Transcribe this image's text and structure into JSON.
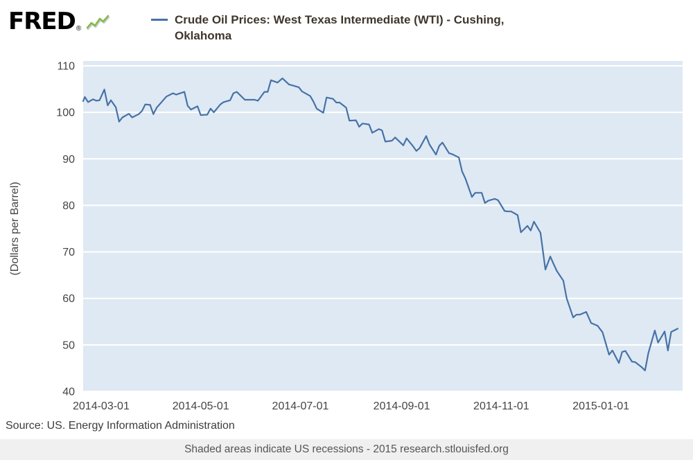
{
  "header": {
    "logo_text": "FRED",
    "registered_mark": "®",
    "legend": {
      "label_line1": "Crude Oil Prices: West Texas Intermediate (WTI) - Cushing,",
      "label_line2": "Oklahoma"
    }
  },
  "footer": {
    "source": "Source: US. Energy Information Administration",
    "recession_note": "Shaded areas indicate US recessions - 2015 research.stlouisfed.org"
  },
  "colors": {
    "line": "#4572a7",
    "plot_bg": "#dfe9f3",
    "grid": "#ffffff",
    "axis_text": "#444444",
    "legend_text": "#3f362c",
    "logo_green": "#86b948"
  },
  "chart_data": {
    "type": "line",
    "title": "Crude Oil Prices: West Texas Intermediate (WTI) - Cushing, Oklahoma",
    "xlabel": "",
    "ylabel": "(Dollars per Barrel)",
    "ylim": [
      40,
      110
    ],
    "y_ticks": [
      40,
      50,
      60,
      70,
      80,
      90,
      100,
      110
    ],
    "x_ticks": [
      "2014-03-01",
      "2014-05-01",
      "2014-07-01",
      "2014-09-01",
      "2014-11-01",
      "2015-01-01"
    ],
    "x_domain": [
      "2014-02-18",
      "2015-02-20"
    ],
    "grid": true,
    "legend_position": "top-left",
    "series": [
      {
        "name": "Crude Oil Prices: West Texas Intermediate (WTI) - Cushing, Oklahoma",
        "points": [
          [
            "2014-02-18",
            102.4
          ],
          [
            "2014-02-19",
            103.3
          ],
          [
            "2014-02-21",
            102.2
          ],
          [
            "2014-02-24",
            102.8
          ],
          [
            "2014-02-26",
            102.5
          ],
          [
            "2014-02-28",
            102.6
          ],
          [
            "2014-03-03",
            104.9
          ],
          [
            "2014-03-05",
            101.5
          ],
          [
            "2014-03-07",
            102.6
          ],
          [
            "2014-03-10",
            101.1
          ],
          [
            "2014-03-12",
            98.0
          ],
          [
            "2014-03-14",
            98.9
          ],
          [
            "2014-03-18",
            99.7
          ],
          [
            "2014-03-20",
            98.9
          ],
          [
            "2014-03-24",
            99.6
          ],
          [
            "2014-03-26",
            100.3
          ],
          [
            "2014-03-28",
            101.7
          ],
          [
            "2014-03-31",
            101.6
          ],
          [
            "2014-04-02",
            99.6
          ],
          [
            "2014-04-04",
            101.0
          ],
          [
            "2014-04-08",
            102.6
          ],
          [
            "2014-04-10",
            103.4
          ],
          [
            "2014-04-14",
            104.1
          ],
          [
            "2014-04-16",
            103.8
          ],
          [
            "2014-04-21",
            104.4
          ],
          [
            "2014-04-23",
            101.4
          ],
          [
            "2014-04-25",
            100.6
          ],
          [
            "2014-04-29",
            101.3
          ],
          [
            "2014-05-01",
            99.4
          ],
          [
            "2014-05-05",
            99.5
          ],
          [
            "2014-05-07",
            100.8
          ],
          [
            "2014-05-09",
            100.0
          ],
          [
            "2014-05-13",
            101.7
          ],
          [
            "2014-05-15",
            102.2
          ],
          [
            "2014-05-19",
            102.6
          ],
          [
            "2014-05-21",
            104.1
          ],
          [
            "2014-05-23",
            104.4
          ],
          [
            "2014-05-28",
            102.7
          ],
          [
            "2014-05-30",
            102.7
          ],
          [
            "2014-06-03",
            102.7
          ],
          [
            "2014-06-05",
            102.5
          ],
          [
            "2014-06-09",
            104.4
          ],
          [
            "2014-06-11",
            104.4
          ],
          [
            "2014-06-13",
            106.9
          ],
          [
            "2014-06-17",
            106.4
          ],
          [
            "2014-06-20",
            107.3
          ],
          [
            "2014-06-24",
            106.0
          ],
          [
            "2014-06-26",
            105.8
          ],
          [
            "2014-06-30",
            105.4
          ],
          [
            "2014-07-02",
            104.5
          ],
          [
            "2014-07-07",
            103.5
          ],
          [
            "2014-07-09",
            102.3
          ],
          [
            "2014-07-11",
            100.8
          ],
          [
            "2014-07-15",
            99.9
          ],
          [
            "2014-07-17",
            103.2
          ],
          [
            "2014-07-21",
            102.9
          ],
          [
            "2014-07-23",
            102.1
          ],
          [
            "2014-07-25",
            102.1
          ],
          [
            "2014-07-29",
            101.0
          ],
          [
            "2014-07-31",
            98.2
          ],
          [
            "2014-08-04",
            98.3
          ],
          [
            "2014-08-06",
            96.9
          ],
          [
            "2014-08-08",
            97.6
          ],
          [
            "2014-08-12",
            97.4
          ],
          [
            "2014-08-14",
            95.6
          ],
          [
            "2014-08-18",
            96.4
          ],
          [
            "2014-08-20",
            96.1
          ],
          [
            "2014-08-22",
            93.7
          ],
          [
            "2014-08-26",
            93.9
          ],
          [
            "2014-08-28",
            94.6
          ],
          [
            "2014-09-02",
            92.9
          ],
          [
            "2014-09-04",
            94.4
          ],
          [
            "2014-09-08",
            92.7
          ],
          [
            "2014-09-10",
            91.7
          ],
          [
            "2014-09-12",
            92.3
          ],
          [
            "2014-09-16",
            94.9
          ],
          [
            "2014-09-18",
            93.1
          ],
          [
            "2014-09-22",
            90.9
          ],
          [
            "2014-09-24",
            92.8
          ],
          [
            "2014-09-26",
            93.5
          ],
          [
            "2014-09-30",
            91.2
          ],
          [
            "2014-10-02",
            91.0
          ],
          [
            "2014-10-06",
            90.3
          ],
          [
            "2014-10-08",
            87.3
          ],
          [
            "2014-10-10",
            85.8
          ],
          [
            "2014-10-14",
            81.8
          ],
          [
            "2014-10-16",
            82.7
          ],
          [
            "2014-10-20",
            82.7
          ],
          [
            "2014-10-22",
            80.5
          ],
          [
            "2014-10-24",
            81.0
          ],
          [
            "2014-10-28",
            81.4
          ],
          [
            "2014-10-30",
            81.1
          ],
          [
            "2014-11-03",
            78.8
          ],
          [
            "2014-11-05",
            78.7
          ],
          [
            "2014-11-07",
            78.7
          ],
          [
            "2014-11-11",
            77.9
          ],
          [
            "2014-11-13",
            74.2
          ],
          [
            "2014-11-17",
            75.6
          ],
          [
            "2014-11-19",
            74.6
          ],
          [
            "2014-11-21",
            76.5
          ],
          [
            "2014-11-25",
            74.1
          ],
          [
            "2014-11-28",
            66.2
          ],
          [
            "2014-12-01",
            69.0
          ],
          [
            "2014-12-03",
            67.4
          ],
          [
            "2014-12-05",
            65.9
          ],
          [
            "2014-12-09",
            63.8
          ],
          [
            "2014-12-11",
            60.0
          ],
          [
            "2014-12-15",
            55.9
          ],
          [
            "2014-12-17",
            56.5
          ],
          [
            "2014-12-19",
            56.5
          ],
          [
            "2014-12-23",
            57.1
          ],
          [
            "2014-12-26",
            54.7
          ],
          [
            "2014-12-30",
            54.1
          ],
          [
            "2015-01-02",
            52.7
          ],
          [
            "2015-01-06",
            47.9
          ],
          [
            "2015-01-08",
            48.8
          ],
          [
            "2015-01-12",
            46.1
          ],
          [
            "2015-01-14",
            48.5
          ],
          [
            "2015-01-16",
            48.7
          ],
          [
            "2015-01-20",
            46.4
          ],
          [
            "2015-01-22",
            46.3
          ],
          [
            "2015-01-26",
            45.2
          ],
          [
            "2015-01-28",
            44.5
          ],
          [
            "2015-01-30",
            48.2
          ],
          [
            "2015-02-03",
            53.1
          ],
          [
            "2015-02-05",
            50.5
          ],
          [
            "2015-02-09",
            52.9
          ],
          [
            "2015-02-11",
            48.8
          ],
          [
            "2015-02-13",
            52.8
          ],
          [
            "2015-02-17",
            53.5
          ]
        ]
      }
    ]
  }
}
